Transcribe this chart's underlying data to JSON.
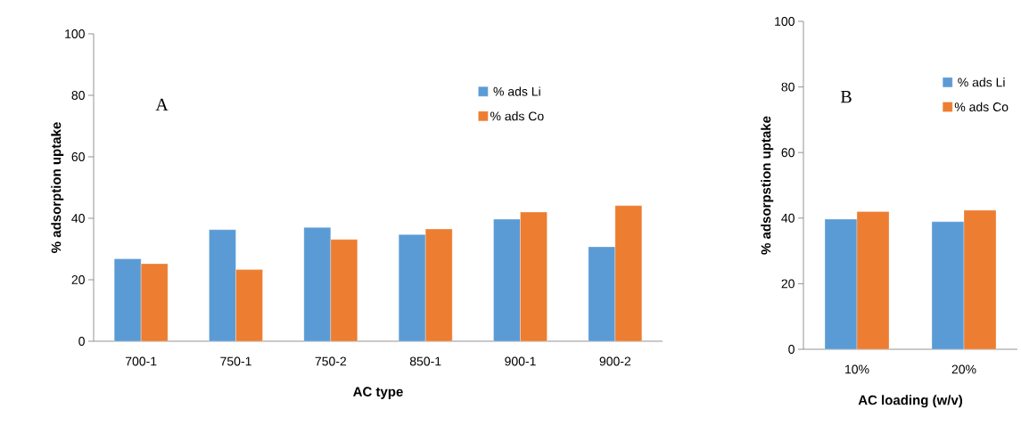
{
  "chart_data": [
    {
      "type": "bar",
      "categories": [
        "700-1",
        "750-1",
        "750-2",
        "850-1",
        "900-1",
        "900-2"
      ],
      "xlabel": "AC type",
      "ylabel": "% adsorption uptake",
      "ylim": [
        0,
        100
      ],
      "yticks": [
        0,
        20,
        40,
        60,
        80,
        100
      ],
      "legend": "top right",
      "annotations": [
        "A"
      ],
      "series": [
        {
          "name": "% ads Li",
          "color": "#5b9bd5",
          "values": [
            26.8,
            36.3,
            37.0,
            34.7,
            39.7,
            30.7
          ]
        },
        {
          "name": "% ads Co",
          "color": "#ed7d31",
          "values": [
            25.2,
            23.3,
            33.1,
            36.5,
            42.0,
            44.1
          ]
        }
      ]
    },
    {
      "type": "bar",
      "categories": [
        "10%",
        "20%"
      ],
      "xlabel": "AC loading (w/v)",
      "ylabel": "% adsorpstion uptake",
      "ylim": [
        0,
        100
      ],
      "yticks": [
        0,
        20,
        40,
        60,
        80,
        100
      ],
      "legend": "top right",
      "annotations": [
        "B"
      ],
      "series": [
        {
          "name": "% ads Li",
          "color": "#5b9bd5",
          "values": [
            39.7,
            38.9
          ]
        },
        {
          "name": "% ads Co",
          "color": "#ed7d31",
          "values": [
            42.0,
            42.4
          ]
        }
      ]
    }
  ]
}
